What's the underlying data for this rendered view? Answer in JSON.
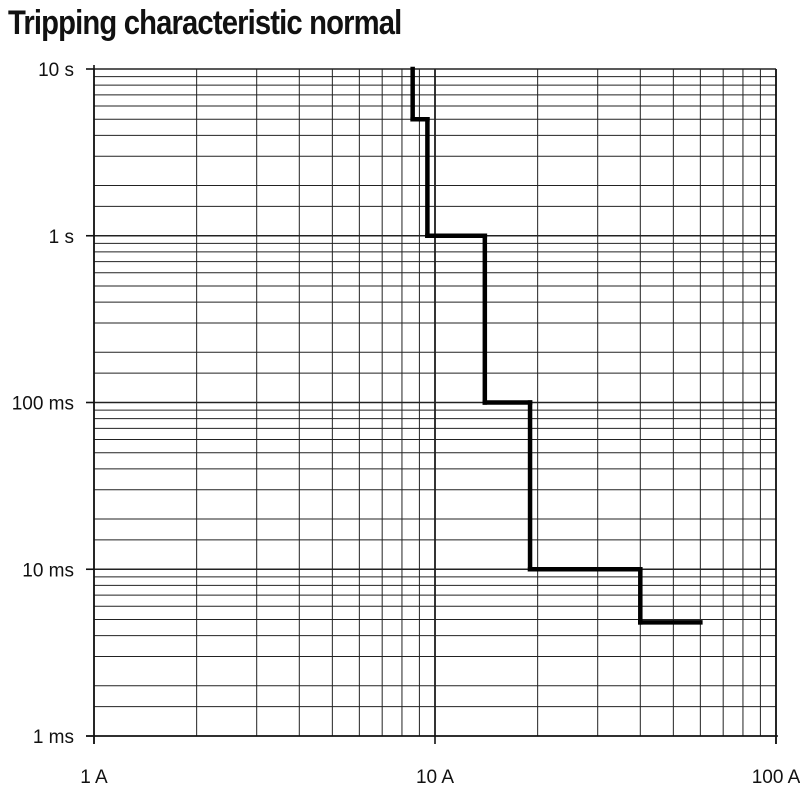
{
  "chart_data": {
    "type": "line",
    "title": "Tripping characteristic normal",
    "xlabel": "",
    "ylabel": "",
    "xscale": "log",
    "yscale": "log",
    "xlim": [
      1,
      100
    ],
    "ylim": [
      0.001,
      10
    ],
    "x_ticks": [
      {
        "value": 1,
        "label": "1 A"
      },
      {
        "value": 10,
        "label": "10 A"
      },
      {
        "value": 100,
        "label": "100 A"
      }
    ],
    "y_ticks": [
      {
        "value": 10,
        "label": "10 s"
      },
      {
        "value": 1,
        "label": "1 s"
      },
      {
        "value": 0.1,
        "label": "100 ms"
      },
      {
        "value": 0.01,
        "label": "10 ms"
      },
      {
        "value": 0.001,
        "label": "1 ms"
      }
    ],
    "grid": true,
    "series": [
      {
        "color": "#000000",
        "step": true,
        "points": [
          {
            "x": 8.6,
            "y": 10
          },
          {
            "x": 8.6,
            "y": 5
          },
          {
            "x": 9.5,
            "y": 5
          },
          {
            "x": 9.5,
            "y": 1
          },
          {
            "x": 14,
            "y": 1
          },
          {
            "x": 14,
            "y": 0.1
          },
          {
            "x": 19,
            "y": 0.1
          },
          {
            "x": 19,
            "y": 0.01
          },
          {
            "x": 40,
            "y": 0.01
          },
          {
            "x": 40,
            "y": 0.0048
          },
          {
            "x": 60,
            "y": 0.0048
          }
        ]
      }
    ]
  }
}
